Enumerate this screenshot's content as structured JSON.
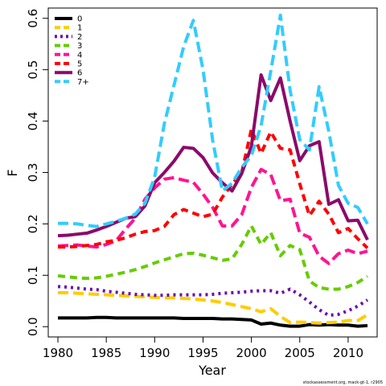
{
  "credit": "stockassessment.org, mack-gt-1, r2905",
  "chart_data": {
    "type": "line",
    "xlabel": "Year",
    "ylabel": "F",
    "xlim": [
      1979,
      2013
    ],
    "ylim": [
      -0.02,
      0.62
    ],
    "x_ticks": [
      "1980",
      "1985",
      "1990",
      "1995",
      "2000",
      "2005",
      "2010"
    ],
    "y_ticks": [
      "0.0",
      "0.1",
      "0.2",
      "0.3",
      "0.4",
      "0.5",
      "0.6"
    ],
    "x": [
      1980,
      1981,
      1982,
      1983,
      1984,
      1985,
      1986,
      1987,
      1988,
      1989,
      1990,
      1991,
      1992,
      1993,
      1994,
      1995,
      1996,
      1997,
      1998,
      1999,
      2000,
      2001,
      2002,
      2003,
      2004,
      2005,
      2006,
      2007,
      2008,
      2009,
      2010,
      2011,
      2012
    ],
    "legend_position": "top-left",
    "series": [
      {
        "name": "0",
        "color": "#000000",
        "dash": "solid",
        "values": [
          0.017,
          0.017,
          0.017,
          0.017,
          0.018,
          0.018,
          0.017,
          0.017,
          0.017,
          0.017,
          0.017,
          0.017,
          0.017,
          0.016,
          0.016,
          0.016,
          0.016,
          0.015,
          0.015,
          0.014,
          0.013,
          0.005,
          0.007,
          0.003,
          0.001,
          0.001,
          0.004,
          0.003,
          0.004,
          0.003,
          0.003,
          0.001,
          0.002
        ]
      },
      {
        "name": "1",
        "color": "#FFCC00",
        "dash": "long",
        "values": [
          0.066,
          0.066,
          0.065,
          0.064,
          0.063,
          0.062,
          0.061,
          0.06,
          0.059,
          0.058,
          0.057,
          0.056,
          0.056,
          0.055,
          0.054,
          0.052,
          0.05,
          0.047,
          0.043,
          0.039,
          0.035,
          0.029,
          0.035,
          0.02,
          0.008,
          0.009,
          0.008,
          0.007,
          0.008,
          0.009,
          0.012,
          0.012,
          0.023
        ]
      },
      {
        "name": "2",
        "color": "#6A0DAD",
        "dash": "dot",
        "values": [
          0.078,
          0.077,
          0.075,
          0.073,
          0.072,
          0.069,
          0.067,
          0.065,
          0.063,
          0.062,
          0.061,
          0.061,
          0.062,
          0.062,
          0.062,
          0.062,
          0.063,
          0.065,
          0.066,
          0.067,
          0.069,
          0.07,
          0.07,
          0.065,
          0.073,
          0.062,
          0.048,
          0.033,
          0.022,
          0.024,
          0.031,
          0.04,
          0.052
        ]
      },
      {
        "name": "3",
        "color": "#66CC00",
        "dash": "dash",
        "values": [
          0.099,
          0.097,
          0.095,
          0.094,
          0.095,
          0.098,
          0.102,
          0.106,
          0.111,
          0.117,
          0.124,
          0.13,
          0.136,
          0.142,
          0.143,
          0.139,
          0.134,
          0.129,
          0.132,
          0.16,
          0.196,
          0.16,
          0.183,
          0.138,
          0.158,
          0.15,
          0.089,
          0.076,
          0.073,
          0.073,
          0.078,
          0.086,
          0.098
        ]
      },
      {
        "name": "4",
        "color": "#FF1493",
        "dash": "long",
        "values": [
          0.157,
          0.158,
          0.159,
          0.157,
          0.155,
          0.16,
          0.167,
          0.19,
          0.211,
          0.248,
          0.27,
          0.287,
          0.29,
          0.285,
          0.281,
          0.258,
          0.232,
          0.196,
          0.196,
          0.218,
          0.271,
          0.306,
          0.296,
          0.245,
          0.248,
          0.182,
          0.174,
          0.137,
          0.123,
          0.142,
          0.149,
          0.142,
          0.147
        ]
      },
      {
        "name": "5",
        "color": "#FF0000",
        "dash": "dash",
        "values": [
          0.155,
          0.155,
          0.156,
          0.158,
          0.16,
          0.165,
          0.168,
          0.173,
          0.18,
          0.185,
          0.187,
          0.195,
          0.218,
          0.228,
          0.221,
          0.214,
          0.219,
          0.252,
          0.277,
          0.3,
          0.384,
          0.337,
          0.379,
          0.347,
          0.344,
          0.278,
          0.216,
          0.244,
          0.219,
          0.183,
          0.191,
          0.171,
          0.153
        ]
      },
      {
        "name": "6",
        "color": "#8B0A6A",
        "dash": "solid",
        "values": [
          0.177,
          0.178,
          0.18,
          0.182,
          0.188,
          0.195,
          0.203,
          0.211,
          0.214,
          0.235,
          0.28,
          0.3,
          0.322,
          0.349,
          0.347,
          0.329,
          0.299,
          0.28,
          0.264,
          0.298,
          0.351,
          0.49,
          0.44,
          0.484,
          0.4,
          0.323,
          0.352,
          0.36,
          0.238,
          0.247,
          0.206,
          0.207,
          0.169
        ]
      },
      {
        "name": "7+",
        "color": "#33CCFF",
        "dash": "long",
        "values": [
          0.201,
          0.201,
          0.2,
          0.197,
          0.195,
          0.2,
          0.205,
          0.211,
          0.219,
          0.24,
          0.291,
          0.395,
          0.47,
          0.545,
          0.596,
          0.5,
          0.362,
          0.264,
          0.279,
          0.31,
          0.333,
          0.391,
          0.497,
          0.606,
          0.46,
          0.364,
          0.344,
          0.467,
          0.38,
          0.275,
          0.24,
          0.232,
          0.2
        ]
      }
    ]
  }
}
